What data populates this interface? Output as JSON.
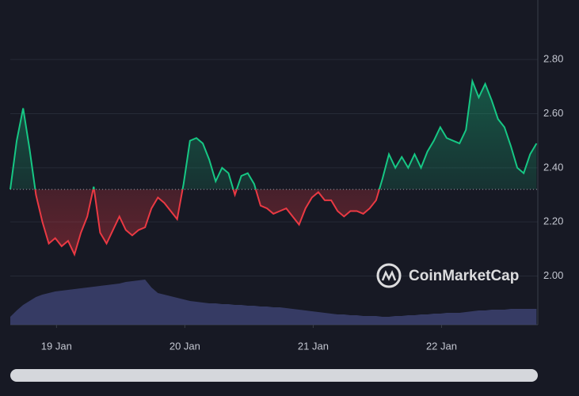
{
  "chart_data": {
    "type": "line",
    "x": [
      18.64,
      18.69,
      18.74,
      18.79,
      18.84,
      18.89,
      18.94,
      18.99,
      19.04,
      19.09,
      19.14,
      19.19,
      19.24,
      19.29,
      19.34,
      19.39,
      19.44,
      19.49,
      19.54,
      19.59,
      19.64,
      19.69,
      19.74,
      19.79,
      19.84,
      19.89,
      19.94,
      19.99,
      20.04,
      20.09,
      20.14,
      20.19,
      20.24,
      20.29,
      20.34,
      20.39,
      20.44,
      20.49,
      20.54,
      20.59,
      20.64,
      20.69,
      20.74,
      20.79,
      20.84,
      20.89,
      20.94,
      20.99,
      21.04,
      21.09,
      21.14,
      21.19,
      21.24,
      21.29,
      21.34,
      21.39,
      21.44,
      21.49,
      21.54,
      21.59,
      21.64,
      21.69,
      21.74,
      21.79,
      21.84,
      21.89,
      21.94,
      21.99,
      22.04,
      22.09,
      22.14,
      22.19,
      22.24,
      22.29,
      22.34,
      22.39,
      22.44,
      22.49,
      22.54,
      22.59,
      22.64,
      22.69,
      22.74
    ],
    "values": [
      2.32,
      2.5,
      2.62,
      2.47,
      2.3,
      2.2,
      2.12,
      2.14,
      2.11,
      2.13,
      2.08,
      2.16,
      2.22,
      2.33,
      2.16,
      2.12,
      2.17,
      2.22,
      2.17,
      2.15,
      2.17,
      2.18,
      2.25,
      2.29,
      2.27,
      2.24,
      2.21,
      2.34,
      2.5,
      2.51,
      2.49,
      2.43,
      2.35,
      2.4,
      2.38,
      2.3,
      2.37,
      2.38,
      2.34,
      2.26,
      2.25,
      2.23,
      2.24,
      2.25,
      2.22,
      2.19,
      2.25,
      2.29,
      2.31,
      2.28,
      2.28,
      2.24,
      2.22,
      2.24,
      2.24,
      2.23,
      2.25,
      2.28,
      2.36,
      2.45,
      2.4,
      2.44,
      2.4,
      2.45,
      2.4,
      2.46,
      2.5,
      2.55,
      2.51,
      2.5,
      2.49,
      2.54,
      2.72,
      2.66,
      2.71,
      2.65,
      2.58,
      2.55,
      2.48,
      2.4,
      2.38,
      2.45,
      2.49
    ],
    "volume": [
      10,
      18,
      25,
      30,
      35,
      38,
      40,
      42,
      43,
      44,
      45,
      46,
      47,
      48,
      49,
      50,
      51,
      52,
      54,
      55,
      56,
      57,
      47,
      40,
      38,
      36,
      34,
      32,
      30,
      29,
      28,
      27,
      27,
      26,
      26,
      25,
      25,
      24,
      24,
      23,
      23,
      22,
      22,
      21,
      20,
      19,
      18,
      17,
      16,
      15,
      14,
      13,
      13,
      12,
      12,
      11,
      11,
      11,
      10,
      10,
      11,
      11,
      12,
      12,
      13,
      13,
      14,
      14,
      15,
      15,
      15,
      16,
      17,
      18,
      18,
      19,
      19,
      19,
      20,
      20,
      20,
      20,
      20
    ],
    "volume_lim": [
      0,
      410
    ],
    "baseline": 2.32,
    "up_color": "#16c784",
    "down_color": "#ea3943",
    "volume_color": "#3a3f6b",
    "xlim": [
      18.64,
      22.75
    ],
    "ylim": [
      1.82,
      3.02
    ],
    "xticks": [
      {
        "value": 19,
        "label": "19 Jan"
      },
      {
        "value": 20,
        "label": "20 Jan"
      },
      {
        "value": 21,
        "label": "21 Jan"
      },
      {
        "value": 22,
        "label": "22 Jan"
      }
    ],
    "yticks": [
      {
        "value": 2.0,
        "label": "2.00"
      },
      {
        "value": 2.2,
        "label": "2.20"
      },
      {
        "value": 2.4,
        "label": "2.40"
      },
      {
        "value": 2.6,
        "label": "2.60"
      },
      {
        "value": 2.8,
        "label": "2.80"
      }
    ],
    "grid": true,
    "watermark": "CoinMarketCap"
  }
}
